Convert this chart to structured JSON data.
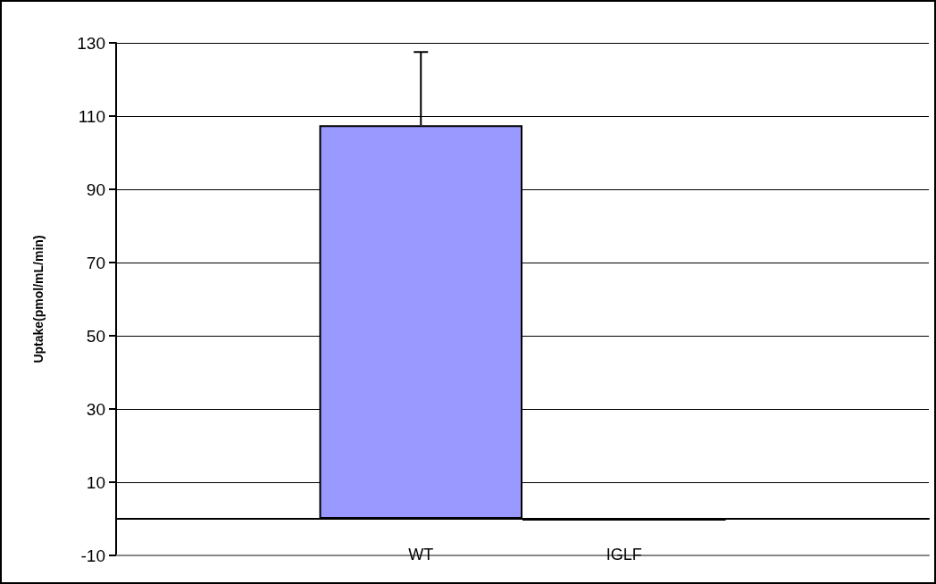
{
  "chart_data": {
    "type": "bar",
    "ylabel": "Uptake(pmol/mL/min)",
    "categories": [
      null,
      "WT",
      "IGLF",
      null
    ],
    "values": [
      null,
      107.5,
      -0.5,
      null
    ],
    "errors": [
      null,
      [
        107.5,
        127.5
      ],
      null,
      null
    ],
    "color": "#9999ff",
    "ylim": [
      -10,
      130
    ],
    "yticks": [
      -10,
      10,
      30,
      50,
      70,
      90,
      110,
      130
    ],
    "grid": "y"
  }
}
